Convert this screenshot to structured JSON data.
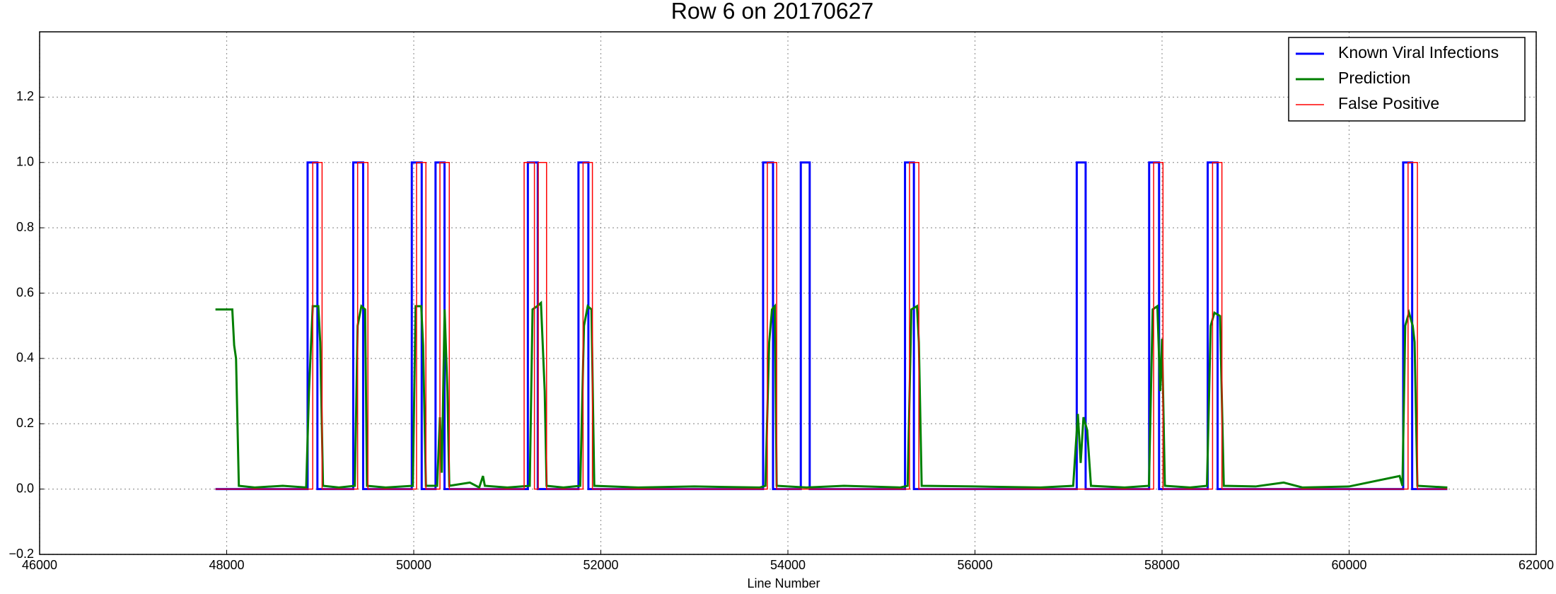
{
  "chart_data": {
    "type": "line",
    "title": "Row 6 on 20170627",
    "x_label": "Line Number",
    "xlim": [
      46000,
      62000
    ],
    "xticks": [
      46000,
      48000,
      50000,
      52000,
      54000,
      56000,
      58000,
      60000,
      62000
    ],
    "ylim": [
      -0.2,
      1.4
    ],
    "yticks": [
      {
        "value": -0.2,
        "label": "−0.2"
      },
      {
        "value": 0,
        "label": "0.0"
      },
      0.2,
      0.4,
      0.6,
      0.8,
      {
        "value": 1,
        "label": "1.0"
      },
      1.2
    ],
    "grid": true,
    "legend": "upper right",
    "series": [
      {
        "name": "Known Viral Infections",
        "color": "#0000ff",
        "linewidth": 3,
        "x": [
          47880,
          48865,
          48865,
          48970,
          48970,
          49353,
          49353,
          49459,
          49459,
          49979,
          49979,
          50085,
          50085,
          50233,
          50233,
          50329,
          50329,
          51220,
          51220,
          51326,
          51326,
          51761,
          51761,
          51867,
          51867,
          53735,
          53735,
          53841,
          53841,
          54138,
          54138,
          54233,
          54233,
          55252,
          55252,
          55347,
          55347,
          57088,
          57088,
          57183,
          57183,
          57862,
          57862,
          57968,
          57968,
          58488,
          58488,
          58594,
          58594,
          60578,
          60578,
          60674,
          60674,
          61050
        ],
        "values": [
          0,
          0,
          1,
          1,
          0,
          0,
          1,
          1,
          0,
          0,
          1,
          1,
          0,
          0,
          1,
          1,
          0,
          0,
          1,
          1,
          0,
          0,
          1,
          1,
          0,
          0,
          1,
          1,
          0,
          0,
          1,
          1,
          0,
          0,
          1,
          1,
          0,
          0,
          1,
          1,
          0,
          0,
          1,
          1,
          0,
          0,
          1,
          1,
          0,
          0,
          1,
          1,
          0,
          0
        ]
      },
      {
        "name": "Prediction",
        "color": "#007f00",
        "linewidth": 3,
        "x": [
          47880,
          47950,
          48000,
          48060,
          48080,
          48100,
          48130,
          48300,
          48600,
          48850,
          48880,
          48920,
          48980,
          49000,
          49030,
          49200,
          49370,
          49400,
          49440,
          49480,
          49500,
          49700,
          49990,
          50020,
          50080,
          50100,
          50130,
          50250,
          50280,
          50300,
          50330,
          50360,
          50380,
          50600,
          50700,
          50740,
          50760,
          51000,
          51240,
          51270,
          51320,
          51360,
          51400,
          51420,
          51600,
          51780,
          51820,
          51860,
          51900,
          51930,
          52400,
          53000,
          53700,
          53760,
          53800,
          53830,
          53860,
          53880,
          54200,
          54600,
          55200,
          55280,
          55320,
          55380,
          55400,
          55430,
          56000,
          56700,
          57050,
          57100,
          57130,
          57160,
          57200,
          57240,
          57600,
          57860,
          57900,
          57950,
          57980,
          58000,
          58030,
          58300,
          58480,
          58520,
          58560,
          58620,
          58660,
          59000,
          59300,
          59500,
          60000,
          60540,
          60570,
          60600,
          60640,
          60680,
          60700,
          60730,
          61050
        ],
        "values": [
          0.55,
          0.55,
          0.55,
          0.55,
          0.44,
          0.4,
          0.01,
          0.005,
          0.01,
          0.005,
          0.3,
          0.56,
          0.56,
          0.45,
          0.01,
          0.005,
          0.01,
          0.5,
          0.56,
          0.55,
          0.01,
          0.005,
          0.01,
          0.56,
          0.56,
          0.44,
          0.01,
          0.01,
          0.22,
          0.05,
          0.55,
          0.3,
          0.01,
          0.02,
          0.005,
          0.04,
          0.01,
          0.005,
          0.01,
          0.55,
          0.56,
          0.57,
          0.3,
          0.01,
          0.005,
          0.01,
          0.5,
          0.56,
          0.55,
          0.01,
          0.005,
          0.008,
          0.005,
          0.01,
          0.45,
          0.55,
          0.56,
          0.01,
          0.005,
          0.01,
          0.005,
          0.01,
          0.55,
          0.56,
          0.45,
          0.01,
          0.008,
          0.005,
          0.01,
          0.23,
          0.08,
          0.22,
          0.18,
          0.01,
          0.005,
          0.01,
          0.55,
          0.56,
          0.3,
          0.46,
          0.01,
          0.005,
          0.01,
          0.5,
          0.54,
          0.53,
          0.01,
          0.008,
          0.02,
          0.005,
          0.008,
          0.04,
          0.01,
          0.5,
          0.54,
          0.5,
          0.45,
          0.01,
          0.005
        ]
      },
      {
        "name": "False Positive",
        "color": "#ff0000",
        "linewidth": 1.5,
        "x": [
          47880,
          48920,
          48920,
          49020,
          49020,
          49400,
          49400,
          49510,
          49510,
          50030,
          50030,
          50130,
          50130,
          50280,
          50280,
          50380,
          50380,
          51180,
          51180,
          51290,
          51290,
          51330,
          51330,
          51420,
          51420,
          51810,
          51810,
          51910,
          51910,
          53780,
          53780,
          53880,
          53880,
          55300,
          55300,
          55400,
          55400,
          57910,
          57910,
          58010,
          58010,
          58540,
          58540,
          58640,
          58640,
          60630,
          60630,
          60730,
          60730,
          61050
        ],
        "values": [
          0,
          0,
          1,
          1,
          0,
          0,
          1,
          1,
          0,
          0,
          1,
          1,
          0,
          0,
          1,
          1,
          0,
          0,
          1,
          1,
          0,
          0,
          1,
          1,
          0,
          0,
          1,
          1,
          0,
          0,
          1,
          1,
          0,
          0,
          1,
          1,
          0,
          0,
          1,
          1,
          0,
          0,
          1,
          1,
          0,
          0,
          1,
          1,
          0,
          0
        ]
      }
    ]
  }
}
